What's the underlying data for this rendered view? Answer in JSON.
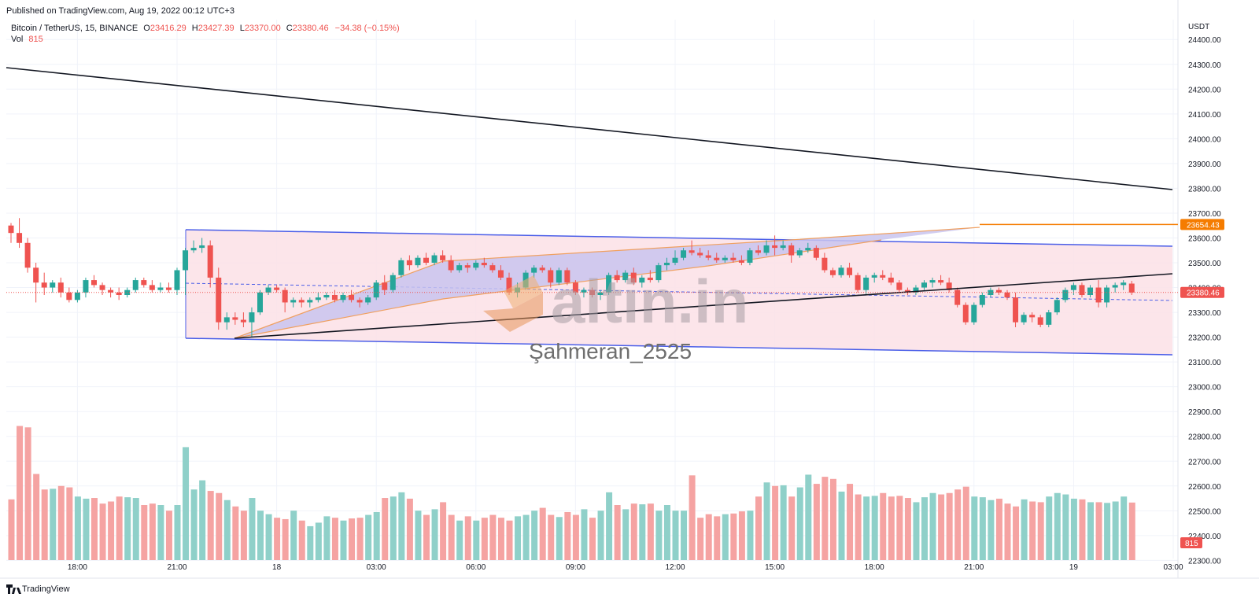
{
  "header": {
    "published": "Published on TradingView.com, Aug 19, 2022 00:12 UTC+3",
    "symbol": "Bitcoin / TetherUS, 15, BINANCE",
    "o_label": "O",
    "o_value": "23416.29",
    "h_label": "H",
    "h_value": "23427.39",
    "l_label": "L",
    "l_value": "23370.00",
    "c_label": "C",
    "c_value": "23380.46",
    "change": "−34.38 (−0.15%)",
    "vol_label": "Vol",
    "vol_value": "815"
  },
  "watermark": {
    "logo": "altin.in",
    "author": "Şahmeran_2525"
  },
  "footer": {
    "brand": "TradingView"
  },
  "colors": {
    "up": "#26a69a",
    "down": "#ef5350",
    "vol_up": "#8fd0c9",
    "vol_down": "#f5a3a2",
    "channel_fill": "#fbe0e6",
    "channel_line": "#4a5ee8",
    "wedge_fill": "#c9c4ef",
    "wedge_line": "#f0a060",
    "orange": "#f57c00",
    "trend": "#131722",
    "grid": "#f0f3fa"
  },
  "chart_data": {
    "type": "candlestick",
    "currency": "USDT",
    "y_ticks": [
      "24400.00",
      "24300.00",
      "24200.00",
      "24100.00",
      "24000.00",
      "23900.00",
      "23800.00",
      "23700.00",
      "23600.00",
      "23500.00",
      "23400.00",
      "23300.00",
      "23200.00",
      "23100.00",
      "23000.00",
      "22900.00",
      "22800.00",
      "22700.00",
      "22600.00",
      "22500.00",
      "22400.00",
      "22300.00"
    ],
    "y_tick_values": [
      24400,
      24300,
      24200,
      24100,
      24000,
      23900,
      23800,
      23700,
      23600,
      23500,
      23400,
      23300,
      23200,
      23100,
      23000,
      22900,
      22800,
      22700,
      22600,
      22500,
      22400,
      22300
    ],
    "ylim": [
      22260,
      24480
    ],
    "x_ticks": [
      "18:00",
      "21:00",
      "18",
      "03:00",
      "06:00",
      "09:00",
      "12:00",
      "15:00",
      "18:00",
      "21:00",
      "19",
      "03:00"
    ],
    "x_tick_index": [
      8,
      20,
      32,
      44,
      56,
      68,
      80,
      92,
      104,
      116,
      128,
      140
    ],
    "last_price": "23380.46",
    "orange_level": "23654.43",
    "orange_level_value": 23654.43,
    "volume_label": "815",
    "bars": [
      {
        "o": 23650,
        "h": 23660,
        "l": 23580,
        "c": 23620,
        "v": 860
      },
      {
        "o": 23620,
        "h": 23680,
        "l": 23560,
        "c": 23580,
        "v": 1900
      },
      {
        "o": 23580,
        "h": 23600,
        "l": 23460,
        "c": 23480,
        "v": 1880
      },
      {
        "o": 23480,
        "h": 23500,
        "l": 23340,
        "c": 23420,
        "v": 1220
      },
      {
        "o": 23420,
        "h": 23460,
        "l": 23370,
        "c": 23400,
        "v": 1000
      },
      {
        "o": 23400,
        "h": 23430,
        "l": 23380,
        "c": 23420,
        "v": 1010
      },
      {
        "o": 23420,
        "h": 23440,
        "l": 23360,
        "c": 23380,
        "v": 1050
      },
      {
        "o": 23380,
        "h": 23400,
        "l": 23340,
        "c": 23350,
        "v": 1030
      },
      {
        "o": 23350,
        "h": 23390,
        "l": 23340,
        "c": 23380,
        "v": 900
      },
      {
        "o": 23380,
        "h": 23440,
        "l": 23360,
        "c": 23430,
        "v": 870
      },
      {
        "o": 23430,
        "h": 23450,
        "l": 23400,
        "c": 23410,
        "v": 880
      },
      {
        "o": 23410,
        "h": 23420,
        "l": 23370,
        "c": 23390,
        "v": 800
      },
      {
        "o": 23390,
        "h": 23400,
        "l": 23360,
        "c": 23380,
        "v": 830
      },
      {
        "o": 23380,
        "h": 23400,
        "l": 23350,
        "c": 23370,
        "v": 900
      },
      {
        "o": 23370,
        "h": 23400,
        "l": 23360,
        "c": 23390,
        "v": 890
      },
      {
        "o": 23390,
        "h": 23440,
        "l": 23380,
        "c": 23430,
        "v": 880
      },
      {
        "o": 23430,
        "h": 23440,
        "l": 23400,
        "c": 23410,
        "v": 780
      },
      {
        "o": 23410,
        "h": 23430,
        "l": 23380,
        "c": 23390,
        "v": 800
      },
      {
        "o": 23390,
        "h": 23420,
        "l": 23380,
        "c": 23400,
        "v": 780
      },
      {
        "o": 23400,
        "h": 23420,
        "l": 23380,
        "c": 23390,
        "v": 700
      },
      {
        "o": 23390,
        "h": 23480,
        "l": 23370,
        "c": 23470,
        "v": 780
      },
      {
        "o": 23470,
        "h": 23560,
        "l": 23370,
        "c": 23550,
        "v": 1600
      },
      {
        "o": 23550,
        "h": 23590,
        "l": 23540,
        "c": 23560,
        "v": 1000
      },
      {
        "o": 23560,
        "h": 23600,
        "l": 23540,
        "c": 23570,
        "v": 1130
      },
      {
        "o": 23570,
        "h": 23590,
        "l": 23400,
        "c": 23440,
        "v": 980
      },
      {
        "o": 23440,
        "h": 23480,
        "l": 23230,
        "c": 23260,
        "v": 950
      },
      {
        "o": 23260,
        "h": 23300,
        "l": 23230,
        "c": 23280,
        "v": 850
      },
      {
        "o": 23280,
        "h": 23300,
        "l": 23250,
        "c": 23270,
        "v": 760
      },
      {
        "o": 23270,
        "h": 23300,
        "l": 23240,
        "c": 23260,
        "v": 700
      },
      {
        "o": 23260,
        "h": 23320,
        "l": 23200,
        "c": 23300,
        "v": 880
      },
      {
        "o": 23300,
        "h": 23390,
        "l": 23290,
        "c": 23380,
        "v": 700
      },
      {
        "o": 23380,
        "h": 23410,
        "l": 23370,
        "c": 23400,
        "v": 650
      },
      {
        "o": 23400,
        "h": 23410,
        "l": 23380,
        "c": 23390,
        "v": 600
      },
      {
        "o": 23390,
        "h": 23400,
        "l": 23300,
        "c": 23340,
        "v": 580
      },
      {
        "o": 23340,
        "h": 23360,
        "l": 23320,
        "c": 23350,
        "v": 700
      },
      {
        "o": 23350,
        "h": 23360,
        "l": 23320,
        "c": 23340,
        "v": 560
      },
      {
        "o": 23340,
        "h": 23360,
        "l": 23320,
        "c": 23350,
        "v": 480
      },
      {
        "o": 23350,
        "h": 23380,
        "l": 23340,
        "c": 23360,
        "v": 530
      },
      {
        "o": 23360,
        "h": 23380,
        "l": 23350,
        "c": 23370,
        "v": 620
      },
      {
        "o": 23370,
        "h": 23390,
        "l": 23340,
        "c": 23350,
        "v": 600
      },
      {
        "o": 23350,
        "h": 23380,
        "l": 23340,
        "c": 23370,
        "v": 560
      },
      {
        "o": 23370,
        "h": 23390,
        "l": 23340,
        "c": 23350,
        "v": 590
      },
      {
        "o": 23350,
        "h": 23360,
        "l": 23320,
        "c": 23340,
        "v": 600
      },
      {
        "o": 23340,
        "h": 23370,
        "l": 23330,
        "c": 23360,
        "v": 640
      },
      {
        "o": 23360,
        "h": 23430,
        "l": 23350,
        "c": 23420,
        "v": 680
      },
      {
        "o": 23420,
        "h": 23450,
        "l": 23370,
        "c": 23390,
        "v": 880
      },
      {
        "o": 23390,
        "h": 23460,
        "l": 23380,
        "c": 23450,
        "v": 900
      },
      {
        "o": 23450,
        "h": 23520,
        "l": 23440,
        "c": 23510,
        "v": 960
      },
      {
        "o": 23510,
        "h": 23530,
        "l": 23470,
        "c": 23490,
        "v": 870
      },
      {
        "o": 23490,
        "h": 23530,
        "l": 23480,
        "c": 23520,
        "v": 700
      },
      {
        "o": 23520,
        "h": 23540,
        "l": 23490,
        "c": 23500,
        "v": 640
      },
      {
        "o": 23500,
        "h": 23540,
        "l": 23490,
        "c": 23530,
        "v": 720
      },
      {
        "o": 23530,
        "h": 23550,
        "l": 23500,
        "c": 23510,
        "v": 820
      },
      {
        "o": 23510,
        "h": 23530,
        "l": 23460,
        "c": 23470,
        "v": 640
      },
      {
        "o": 23470,
        "h": 23500,
        "l": 23460,
        "c": 23490,
        "v": 560
      },
      {
        "o": 23490,
        "h": 23500,
        "l": 23460,
        "c": 23480,
        "v": 620
      },
      {
        "o": 23480,
        "h": 23510,
        "l": 23470,
        "c": 23500,
        "v": 560
      },
      {
        "o": 23500,
        "h": 23520,
        "l": 23480,
        "c": 23490,
        "v": 600
      },
      {
        "o": 23490,
        "h": 23500,
        "l": 23460,
        "c": 23470,
        "v": 640
      },
      {
        "o": 23470,
        "h": 23490,
        "l": 23430,
        "c": 23440,
        "v": 600
      },
      {
        "o": 23440,
        "h": 23460,
        "l": 23370,
        "c": 23380,
        "v": 560
      },
      {
        "o": 23380,
        "h": 23420,
        "l": 23360,
        "c": 23400,
        "v": 620
      },
      {
        "o": 23400,
        "h": 23470,
        "l": 23390,
        "c": 23460,
        "v": 640
      },
      {
        "o": 23460,
        "h": 23490,
        "l": 23440,
        "c": 23480,
        "v": 700
      },
      {
        "o": 23480,
        "h": 23490,
        "l": 23460,
        "c": 23470,
        "v": 740
      },
      {
        "o": 23470,
        "h": 23480,
        "l": 23400,
        "c": 23420,
        "v": 640
      },
      {
        "o": 23420,
        "h": 23480,
        "l": 23410,
        "c": 23470,
        "v": 610
      },
      {
        "o": 23470,
        "h": 23480,
        "l": 23410,
        "c": 23420,
        "v": 680
      },
      {
        "o": 23420,
        "h": 23430,
        "l": 23370,
        "c": 23380,
        "v": 640
      },
      {
        "o": 23380,
        "h": 23400,
        "l": 23360,
        "c": 23390,
        "v": 720
      },
      {
        "o": 23390,
        "h": 23400,
        "l": 23360,
        "c": 23370,
        "v": 600
      },
      {
        "o": 23370,
        "h": 23390,
        "l": 23350,
        "c": 23380,
        "v": 700
      },
      {
        "o": 23380,
        "h": 23460,
        "l": 23370,
        "c": 23450,
        "v": 960
      },
      {
        "o": 23450,
        "h": 23470,
        "l": 23420,
        "c": 23430,
        "v": 780
      },
      {
        "o": 23430,
        "h": 23470,
        "l": 23420,
        "c": 23460,
        "v": 720
      },
      {
        "o": 23460,
        "h": 23480,
        "l": 23410,
        "c": 23420,
        "v": 800
      },
      {
        "o": 23420,
        "h": 23450,
        "l": 23400,
        "c": 23440,
        "v": 790
      },
      {
        "o": 23440,
        "h": 23470,
        "l": 23420,
        "c": 23430,
        "v": 800
      },
      {
        "o": 23430,
        "h": 23500,
        "l": 23420,
        "c": 23490,
        "v": 700
      },
      {
        "o": 23490,
        "h": 23520,
        "l": 23470,
        "c": 23500,
        "v": 780
      },
      {
        "o": 23500,
        "h": 23550,
        "l": 23490,
        "c": 23520,
        "v": 700
      },
      {
        "o": 23520,
        "h": 23560,
        "l": 23510,
        "c": 23550,
        "v": 700
      },
      {
        "o": 23550,
        "h": 23590,
        "l": 23530,
        "c": 23540,
        "v": 1200
      },
      {
        "o": 23540,
        "h": 23560,
        "l": 23520,
        "c": 23530,
        "v": 600
      },
      {
        "o": 23530,
        "h": 23550,
        "l": 23510,
        "c": 23520,
        "v": 650
      },
      {
        "o": 23520,
        "h": 23540,
        "l": 23500,
        "c": 23510,
        "v": 620
      },
      {
        "o": 23510,
        "h": 23530,
        "l": 23500,
        "c": 23520,
        "v": 650
      },
      {
        "o": 23520,
        "h": 23540,
        "l": 23500,
        "c": 23510,
        "v": 660
      },
      {
        "o": 23510,
        "h": 23530,
        "l": 23490,
        "c": 23500,
        "v": 690
      },
      {
        "o": 23500,
        "h": 23560,
        "l": 23490,
        "c": 23550,
        "v": 700
      },
      {
        "o": 23550,
        "h": 23570,
        "l": 23530,
        "c": 23540,
        "v": 900
      },
      {
        "o": 23540,
        "h": 23590,
        "l": 23530,
        "c": 23570,
        "v": 1100
      },
      {
        "o": 23570,
        "h": 23610,
        "l": 23530,
        "c": 23560,
        "v": 1050
      },
      {
        "o": 23560,
        "h": 23590,
        "l": 23550,
        "c": 23570,
        "v": 1060
      },
      {
        "o": 23570,
        "h": 23580,
        "l": 23500,
        "c": 23530,
        "v": 900
      },
      {
        "o": 23530,
        "h": 23560,
        "l": 23520,
        "c": 23550,
        "v": 1030
      },
      {
        "o": 23550,
        "h": 23580,
        "l": 23540,
        "c": 23560,
        "v": 1210
      },
      {
        "o": 23560,
        "h": 23570,
        "l": 23510,
        "c": 23520,
        "v": 1080
      },
      {
        "o": 23520,
        "h": 23540,
        "l": 23460,
        "c": 23470,
        "v": 1180
      },
      {
        "o": 23470,
        "h": 23480,
        "l": 23440,
        "c": 23450,
        "v": 1150
      },
      {
        "o": 23450,
        "h": 23490,
        "l": 23440,
        "c": 23480,
        "v": 970
      },
      {
        "o": 23480,
        "h": 23500,
        "l": 23440,
        "c": 23450,
        "v": 1080
      },
      {
        "o": 23450,
        "h": 23460,
        "l": 23380,
        "c": 23390,
        "v": 930
      },
      {
        "o": 23390,
        "h": 23450,
        "l": 23370,
        "c": 23440,
        "v": 900
      },
      {
        "o": 23440,
        "h": 23460,
        "l": 23420,
        "c": 23450,
        "v": 910
      },
      {
        "o": 23450,
        "h": 23470,
        "l": 23430,
        "c": 23440,
        "v": 950
      },
      {
        "o": 23440,
        "h": 23460,
        "l": 23410,
        "c": 23420,
        "v": 900
      },
      {
        "o": 23420,
        "h": 23430,
        "l": 23380,
        "c": 23390,
        "v": 910
      },
      {
        "o": 23390,
        "h": 23400,
        "l": 23370,
        "c": 23380,
        "v": 880
      },
      {
        "o": 23380,
        "h": 23410,
        "l": 23370,
        "c": 23400,
        "v": 820
      },
      {
        "o": 23400,
        "h": 23430,
        "l": 23390,
        "c": 23420,
        "v": 890
      },
      {
        "o": 23420,
        "h": 23440,
        "l": 23400,
        "c": 23430,
        "v": 950
      },
      {
        "o": 23430,
        "h": 23450,
        "l": 23410,
        "c": 23420,
        "v": 930
      },
      {
        "o": 23420,
        "h": 23440,
        "l": 23380,
        "c": 23390,
        "v": 950
      },
      {
        "o": 23390,
        "h": 23400,
        "l": 23320,
        "c": 23330,
        "v": 1000
      },
      {
        "o": 23330,
        "h": 23340,
        "l": 23250,
        "c": 23260,
        "v": 1040
      },
      {
        "o": 23260,
        "h": 23340,
        "l": 23250,
        "c": 23330,
        "v": 900
      },
      {
        "o": 23330,
        "h": 23380,
        "l": 23320,
        "c": 23370,
        "v": 890
      },
      {
        "o": 23370,
        "h": 23400,
        "l": 23360,
        "c": 23390,
        "v": 850
      },
      {
        "o": 23390,
        "h": 23400,
        "l": 23370,
        "c": 23380,
        "v": 870
      },
      {
        "o": 23380,
        "h": 23390,
        "l": 23350,
        "c": 23360,
        "v": 800
      },
      {
        "o": 23360,
        "h": 23380,
        "l": 23240,
        "c": 23260,
        "v": 760
      },
      {
        "o": 23260,
        "h": 23300,
        "l": 23250,
        "c": 23290,
        "v": 860
      },
      {
        "o": 23290,
        "h": 23300,
        "l": 23260,
        "c": 23280,
        "v": 830
      },
      {
        "o": 23280,
        "h": 23290,
        "l": 23240,
        "c": 23250,
        "v": 820
      },
      {
        "o": 23250,
        "h": 23310,
        "l": 23240,
        "c": 23300,
        "v": 900
      },
      {
        "o": 23300,
        "h": 23360,
        "l": 23290,
        "c": 23350,
        "v": 950
      },
      {
        "o": 23350,
        "h": 23400,
        "l": 23340,
        "c": 23390,
        "v": 930
      },
      {
        "o": 23390,
        "h": 23420,
        "l": 23370,
        "c": 23410,
        "v": 870
      },
      {
        "o": 23410,
        "h": 23420,
        "l": 23360,
        "c": 23370,
        "v": 860
      },
      {
        "o": 23370,
        "h": 23410,
        "l": 23360,
        "c": 23400,
        "v": 820
      },
      {
        "o": 23400,
        "h": 23430,
        "l": 23320,
        "c": 23340,
        "v": 820
      },
      {
        "o": 23340,
        "h": 23410,
        "l": 23320,
        "c": 23400,
        "v": 810
      },
      {
        "o": 23400,
        "h": 23420,
        "l": 23380,
        "c": 23410,
        "v": 830
      },
      {
        "o": 23410,
        "h": 23430,
        "l": 23390,
        "c": 23420,
        "v": 900
      },
      {
        "o": 23416,
        "h": 23427,
        "l": 23370,
        "c": 23380,
        "v": 815
      }
    ]
  }
}
